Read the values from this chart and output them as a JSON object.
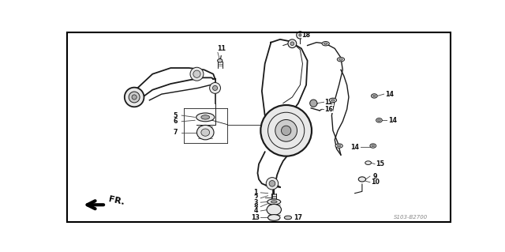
{
  "background_color": "#ffffff",
  "fig_width": 6.4,
  "fig_height": 3.19,
  "dpi": 100,
  "diagram_code_text": "S103-B2700",
  "text_color": "#333333",
  "ec": "#1a1a1a",
  "fc_light": "#e8e8e8",
  "fc_mid": "#cccccc",
  "fc_dark": "#aaaaaa",
  "lw_main": 1.3,
  "lw_thin": 0.7,
  "label_fontsize": 5.8
}
